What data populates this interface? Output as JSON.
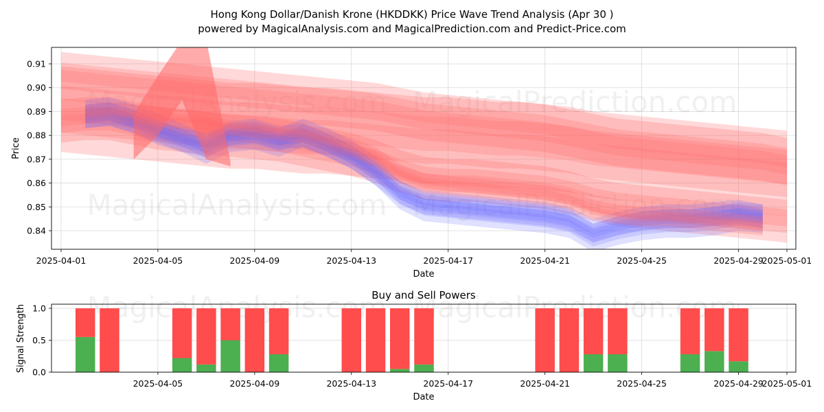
{
  "title_line1": "Hong Kong Dollar/Danish Krone (HKDDKK) Price Wave Trend Analysis (Apr 30 )",
  "title_line2": "powered by MagicalAnalysis.com and MagicalPrediction.com and Predict-Price.com",
  "watermarks": [
    "MagicalAnalysis.com",
    "MagicalPrediction.com"
  ],
  "colors": {
    "sell": "#ff4c4c",
    "buy": "#4caf50",
    "blue_band": "#6666ff",
    "red_band": "#ff6666"
  },
  "chart_data": [
    {
      "type": "area",
      "xlabel": "Date",
      "ylabel": "Price",
      "x_ticks": [
        "2025-04-01",
        "2025-04-05",
        "2025-04-09",
        "2025-04-13",
        "2025-04-17",
        "2025-04-21",
        "2025-04-25",
        "2025-04-29",
        "2025-05-01"
      ],
      "y_ticks": [
        0.84,
        0.85,
        0.86,
        0.87,
        0.88,
        0.89,
        0.9,
        0.91
      ],
      "xlim": [
        "2025-03-31",
        "2025-05-01"
      ],
      "ylim": [
        0.832,
        0.917
      ],
      "grid": true,
      "x": [
        "2025-04-01",
        "2025-04-02",
        "2025-04-03",
        "2025-04-04",
        "2025-04-05",
        "2025-04-06",
        "2025-04-07",
        "2025-04-08",
        "2025-04-09",
        "2025-04-10",
        "2025-04-11",
        "2025-04-12",
        "2025-04-13",
        "2025-04-14",
        "2025-04-15",
        "2025-04-16",
        "2025-04-17",
        "2025-04-18",
        "2025-04-19",
        "2025-04-20",
        "2025-04-21",
        "2025-04-22",
        "2025-04-23",
        "2025-04-24",
        "2025-04-25",
        "2025-04-26",
        "2025-04-27",
        "2025-04-28",
        "2025-04-29",
        "2025-04-30",
        "2025-05-01"
      ],
      "series": [
        {
          "color": "blue",
          "values": [
            null,
            0.889,
            0.89,
            0.887,
            0.883,
            0.879,
            0.874,
            0.879,
            0.88,
            0.877,
            0.881,
            0.877,
            0.872,
            0.865,
            0.855,
            0.85,
            0.849,
            0.848,
            0.847,
            0.846,
            0.845,
            0.843,
            0.837,
            0.84,
            0.842,
            0.843,
            0.843,
            0.844,
            0.846,
            0.845,
            null
          ],
          "spread": 0.006
        },
        {
          "color": "blue",
          "values": [
            null,
            0.888,
            0.889,
            0.886,
            0.881,
            0.878,
            0.876,
            0.881,
            0.882,
            0.879,
            0.88,
            0.876,
            0.871,
            0.864,
            0.856,
            0.852,
            0.851,
            0.85,
            0.849,
            0.848,
            0.847,
            0.845,
            0.84,
            0.843,
            0.845,
            0.846,
            0.846,
            0.847,
            0.848,
            0.846,
            null
          ],
          "spread": 0.005
        },
        {
          "color": "red",
          "values": [
            null,
            0.889,
            0.89,
            0.889,
            0.888,
            0.887,
            0.886,
            0.884,
            0.883,
            0.882,
            0.881,
            0.878,
            0.875,
            0.871,
            0.864,
            0.86,
            0.859,
            0.858,
            0.857,
            0.856,
            0.855,
            0.853,
            0.849,
            0.847,
            0.846,
            0.846,
            0.845,
            0.844,
            0.843,
            0.842,
            null
          ],
          "spread": 0.004
        },
        {
          "color": "red",
          "values": [
            0.886,
            0.887,
            0.887,
            0.885,
            0.883,
            0.882,
            0.881,
            0.88,
            0.879,
            0.878,
            0.876,
            0.874,
            0.872,
            0.869,
            0.865,
            0.862,
            0.861,
            0.861,
            0.86,
            0.859,
            0.858,
            0.856,
            0.853,
            0.851,
            0.85,
            0.849,
            0.848,
            0.847,
            0.846,
            0.845,
            0.844
          ],
          "spread": 0.009
        },
        {
          "color": "red",
          "values": [
            0.905,
            0.904,
            0.903,
            0.902,
            0.901,
            0.9,
            0.899,
            0.898,
            0.897,
            0.896,
            0.895,
            0.894,
            0.893,
            0.892,
            0.89,
            0.888,
            0.887,
            0.886,
            0.885,
            0.884,
            0.883,
            0.881,
            0.879,
            0.877,
            0.876,
            0.875,
            0.874,
            0.873,
            0.872,
            0.871,
            0.869
          ],
          "spread": 0.01
        },
        {
          "color": "red",
          "values": [
            0.891,
            0.89,
            0.889,
            0.888,
            0.887,
            0.886,
            0.885,
            0.884,
            0.884,
            0.883,
            0.882,
            0.882,
            0.881,
            0.88,
            0.879,
            0.878,
            0.878,
            0.877,
            0.876,
            0.876,
            0.875,
            0.874,
            0.872,
            0.871,
            0.87,
            0.869,
            0.868,
            0.867,
            0.866,
            0.865,
            0.864
          ],
          "spread": 0.018
        }
      ],
      "wave_spike": {
        "dates": [
          "2025-04-04",
          "2025-04-05",
          "2025-04-06",
          "2025-04-07",
          "2025-04-08"
        ],
        "upper": [
          0.889,
          0.905,
          0.92,
          0.92,
          0.869
        ],
        "lower": [
          0.87,
          0.88,
          0.895,
          0.87,
          0.867
        ]
      }
    },
    {
      "type": "bar",
      "title": "Buy and Sell Powers",
      "xlabel": "Date",
      "ylabel": "Signal Strength",
      "y_ticks": [
        0.0,
        0.5,
        1.0
      ],
      "x_ticks": [
        "2025-04-05",
        "2025-04-09",
        "2025-04-13",
        "2025-04-17",
        "2025-04-21",
        "2025-04-25",
        "2025-04-29",
        "2025-05-01"
      ],
      "xlim": [
        "2025-03-31",
        "2025-05-01"
      ],
      "ylim": [
        0,
        1.05
      ],
      "dates": [
        "2025-04-02",
        "2025-04-03",
        "2025-04-06",
        "2025-04-07",
        "2025-04-08",
        "2025-04-09",
        "2025-04-10",
        "2025-04-13",
        "2025-04-14",
        "2025-04-15",
        "2025-04-16",
        "2025-04-21",
        "2025-04-22",
        "2025-04-23",
        "2025-04-24",
        "2025-04-27",
        "2025-04-28",
        "2025-04-29"
      ],
      "buy": [
        0.55,
        0.0,
        0.22,
        0.12,
        0.5,
        0.0,
        0.28,
        0.0,
        0.0,
        0.05,
        0.12,
        0.0,
        0.0,
        0.28,
        0.28,
        0.28,
        0.33,
        0.17
      ],
      "sell": [
        0.45,
        1.0,
        0.78,
        0.88,
        0.5,
        1.0,
        0.72,
        1.0,
        1.0,
        0.95,
        0.88,
        1.0,
        1.0,
        0.72,
        0.72,
        0.72,
        0.67,
        0.83
      ]
    }
  ]
}
